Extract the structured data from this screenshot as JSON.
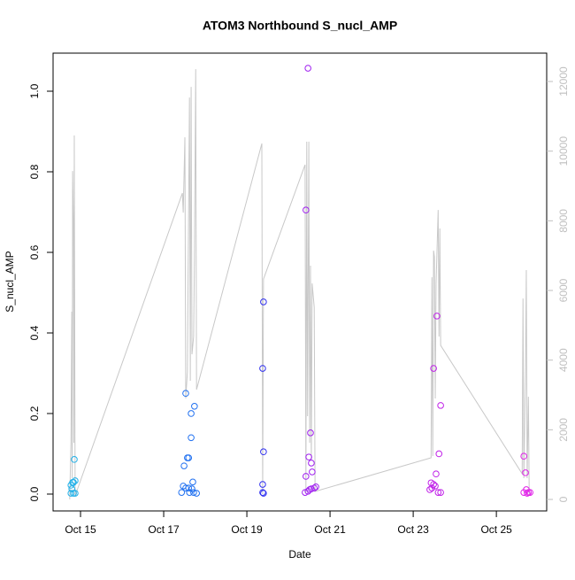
{
  "chart_data": {
    "type": "scatter",
    "title": "ATOM3 Northbound S_nucl_AMP",
    "x_label": "Date",
    "y_label": "S_nucl_AMP",
    "xlim": [
      14.34,
      26.21
    ],
    "ylim": [
      -0.0418,
      1.0945
    ],
    "y2lim": [
      -330,
      12814
    ],
    "xticks": [
      {
        "value": 15,
        "label": "Oct 15"
      },
      {
        "value": 17,
        "label": "Oct 17"
      },
      {
        "value": 19,
        "label": "Oct 19"
      },
      {
        "value": 21,
        "label": "Oct 21"
      },
      {
        "value": 23,
        "label": "Oct 23"
      },
      {
        "value": 25,
        "label": "Oct 25"
      }
    ],
    "yticks": [
      {
        "value": 0,
        "label": "0.0"
      },
      0.2,
      0.4,
      0.6,
      0.8,
      {
        "value": 1,
        "label": "1.0"
      }
    ],
    "y2ticks": [
      0,
      2000,
      4000,
      6000,
      8000,
      10000,
      12000
    ],
    "y2_color": "#c0c0c0",
    "series": [
      {
        "type": "line",
        "axis": "y2",
        "color": "#c8c8c8",
        "x": [
          14.74,
          14.77,
          14.79,
          14.8,
          14.81,
          14.83,
          14.84,
          14.85,
          14.87,
          17.45,
          17.47,
          17.51,
          17.53,
          17.57,
          17.62,
          17.64,
          17.66,
          17.68,
          17.72,
          17.74,
          17.77,
          17.79,
          19.36,
          19.38,
          19.4,
          20.4,
          20.42,
          20.44,
          20.46,
          20.49,
          20.51,
          20.53,
          20.55,
          20.57,
          20.62,
          20.64,
          23.43,
          23.45,
          23.47,
          23.49,
          23.51,
          23.53,
          23.55,
          23.6,
          23.62,
          23.64,
          23.66,
          25.62,
          25.64,
          25.66,
          25.7,
          25.72,
          25.74,
          25.77,
          25.79
        ],
        "values": [
          0,
          1627,
          5390,
          610,
          9431,
          7728,
          1627,
          10448,
          102,
          8795,
          8236,
          10397,
          2898,
          3660,
          11541,
          3406,
          11846,
          4169,
          4677,
          6965,
          12354,
          3152,
          10219,
          153,
          6330,
          9609,
          203,
          10270,
          2389,
          10270,
          1627,
          6711,
          1118,
          6202,
          5516,
          229,
          1195,
          6380,
          1246,
          7143,
          6965,
          2898,
          6202,
          8312,
          4677,
          7779,
          4423,
          737,
          5770,
          610,
          3660,
          6584,
          610,
          2949,
          102
        ]
      },
      {
        "color": "#20b0e8",
        "x": [
          14.85,
          14.83,
          14.87,
          14.77,
          14.81,
          14.79,
          14.77,
          14.83,
          14.87
        ],
        "values": [
          0.086,
          0.029,
          0.033,
          0.022,
          0.029,
          0.013,
          0.002,
          0.002,
          0.002
        ]
      },
      {
        "color": "#2070f0",
        "x": [
          17.53,
          17.49,
          17.6,
          17.57,
          17.66,
          17.66,
          17.74,
          17.7,
          17.47,
          17.53,
          17.6,
          17.68,
          17.72,
          17.79,
          17.43,
          17.62
        ],
        "values": [
          0.25,
          0.07,
          0.09,
          0.09,
          0.2,
          0.14,
          0.218,
          0.03,
          0.02,
          0.015,
          0.015,
          0.013,
          0.004,
          0.002,
          0.004,
          0.004
        ]
      },
      {
        "color": "#3030f0",
        "x": [
          19.4,
          19.38,
          19.4,
          19.38,
          19.38,
          19.4
        ],
        "values": [
          0.477,
          0.312,
          0.105,
          0.024,
          0.004,
          0.002
        ]
      },
      {
        "color": "#a020f0",
        "x": [
          20.47,
          20.42,
          20.53,
          20.49,
          20.55,
          20.57,
          20.42,
          20.51,
          20.55,
          20.62,
          20.66,
          20.4,
          20.47
        ],
        "values": [
          1.057,
          0.705,
          0.152,
          0.092,
          0.077,
          0.055,
          0.044,
          0.011,
          0.013,
          0.015,
          0.018,
          0.004,
          0.007
        ]
      },
      {
        "color": "#c020e8",
        "x": [
          23.49,
          23.57,
          23.66,
          23.62,
          23.55,
          23.43,
          23.49,
          23.45,
          23.53,
          23.6,
          23.66,
          23.4
        ],
        "values": [
          0.312,
          0.442,
          0.22,
          0.1,
          0.05,
          0.028,
          0.024,
          0.015,
          0.02,
          0.004,
          0.004,
          0.011
        ]
      },
      {
        "color": "#e020e8",
        "x": [
          25.66,
          25.7,
          25.66,
          25.72,
          25.77,
          25.81,
          25.74
        ],
        "values": [
          0.094,
          0.053,
          0.004,
          0.011,
          0.004,
          0.004,
          0.002
        ]
      }
    ]
  }
}
